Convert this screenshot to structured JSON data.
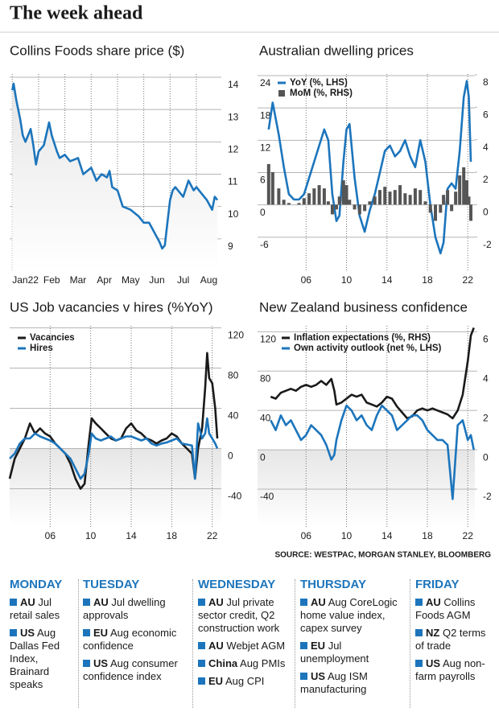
{
  "title": "The week ahead",
  "chart_data": [
    {
      "type": "line",
      "title": "Collins Foods share price ($)",
      "color": "#1c75bc",
      "x": [
        0,
        0.05,
        0.15,
        0.3,
        0.4,
        0.5,
        0.6,
        0.7,
        0.8,
        0.9,
        1.0,
        1.2,
        1.4,
        1.5,
        1.7,
        1.8,
        2.0,
        2.2,
        2.5,
        2.7,
        3.0,
        3.2,
        3.4,
        3.6,
        3.7,
        3.8,
        4.0,
        4.2,
        4.5,
        4.8,
        5.0,
        5.2,
        5.4,
        5.6,
        5.7,
        5.8,
        5.9,
        6.0,
        6.1,
        6.2,
        6.3,
        6.5,
        6.7,
        6.9,
        7.0,
        7.2,
        7.4,
        7.6,
        7.7,
        7.8
      ],
      "values": [
        13.6,
        13.8,
        13.3,
        12.7,
        12.2,
        12.0,
        12.2,
        12.4,
        11.9,
        11.3,
        11.7,
        11.9,
        12.6,
        12.2,
        11.7,
        11.5,
        11.6,
        11.4,
        11.5,
        11.0,
        11.2,
        10.8,
        11.0,
        10.9,
        11.1,
        10.6,
        10.5,
        10.0,
        9.9,
        9.7,
        9.5,
        9.5,
        9.2,
        8.9,
        8.7,
        8.8,
        9.5,
        10.2,
        10.5,
        10.6,
        10.5,
        10.3,
        10.8,
        10.5,
        10.6,
        10.4,
        10.2,
        9.9,
        10.3,
        10.2
      ],
      "xlim": [
        -0.1,
        7.95
      ],
      "xticks": [
        {
          "value": 0,
          "label": "Jan22"
        },
        {
          "value": 1,
          "label": "Feb"
        },
        {
          "value": 2,
          "label": "Mar"
        },
        {
          "value": 3,
          "label": "Apr"
        },
        {
          "value": 4,
          "label": "May"
        },
        {
          "value": 5,
          "label": "Jun"
        },
        {
          "value": 6,
          "label": "Jul"
        },
        {
          "value": 7,
          "label": "Aug"
        }
      ],
      "ylim": [
        8.0,
        14.1
      ],
      "yticks": [
        14,
        13,
        12,
        11,
        10,
        9
      ],
      "grid": true
    },
    {
      "type": "combo",
      "title": "Australian dwelling prices",
      "x": [
        2002.3,
        2002.7,
        2003.3,
        2003.8,
        2004.3,
        2004.8,
        2005.3,
        2005.8,
        2006.3,
        2006.8,
        2007.3,
        2007.8,
        2008.2,
        2008.6,
        2009.0,
        2009.3,
        2009.7,
        2010.0,
        2010.3,
        2010.8,
        2011.3,
        2011.8,
        2012.3,
        2012.8,
        2013.3,
        2013.8,
        2014.3,
        2014.8,
        2015.3,
        2015.8,
        2016.3,
        2016.8,
        2017.3,
        2017.8,
        2018.3,
        2018.8,
        2019.3,
        2019.6,
        2020.0,
        2020.4,
        2020.8,
        2021.2,
        2021.6,
        2021.9,
        2022.1,
        2022.3
      ],
      "series": [
        {
          "name": "YoY (%, LHS)",
          "type": "line",
          "color": "#1c75bc",
          "values": [
            14,
            19,
            13,
            7,
            2,
            1,
            1,
            2,
            5,
            8,
            11,
            14,
            12,
            2,
            -3,
            -2,
            8,
            14,
            15,
            5,
            -2,
            -5,
            -1,
            2,
            6,
            10,
            11,
            9,
            10,
            12,
            9,
            7,
            12,
            8,
            0,
            -6,
            -9,
            -7,
            3,
            4,
            3,
            10,
            20,
            23,
            20,
            8
          ]
        },
        {
          "name": "MoM (%, RHS)",
          "type": "bar",
          "axis": "y2",
          "color": "#555555",
          "values": [
            2.5,
            2.0,
            1.0,
            0.3,
            0.1,
            0.0,
            0.1,
            0.4,
            0.7,
            1.0,
            1.2,
            1.0,
            0.2,
            -0.6,
            -0.3,
            0.5,
            1.5,
            1.2,
            0.3,
            -0.3,
            -0.6,
            -0.4,
            0.2,
            0.5,
            0.9,
            1.1,
            0.8,
            0.9,
            1.2,
            0.7,
            0.6,
            1.0,
            0.9,
            0.2,
            -0.5,
            -1.0,
            -0.5,
            0.6,
            0.9,
            -0.4,
            0.8,
            1.8,
            2.3,
            1.5,
            0.5,
            -1.0
          ]
        }
      ],
      "xlim": [
        2001.2,
        2022.7
      ],
      "xticks": [
        {
          "value": 2006,
          "label": "06"
        },
        {
          "value": 2010,
          "label": "10"
        },
        {
          "value": 2014,
          "label": "14"
        },
        {
          "value": 2018,
          "label": "18"
        },
        {
          "value": 2022,
          "label": "22"
        }
      ],
      "ylim": [
        -12.3,
        24.3
      ],
      "yticks": [
        24,
        18,
        12,
        6,
        0,
        -6
      ],
      "y2lim": [
        -4.1,
        8.05
      ],
      "y2ticks": [
        8,
        6,
        4,
        2,
        0,
        -2
      ],
      "grid": true,
      "legend": "top-left"
    },
    {
      "type": "line",
      "title": "US Job vacancies v hires (%YoY)",
      "x": [
        2002,
        2002.5,
        2003,
        2003.5,
        2004,
        2004.5,
        2005,
        2005.5,
        2006,
        2006.5,
        2007,
        2007.5,
        2008,
        2008.5,
        2009,
        2009.4,
        2009.8,
        2010.1,
        2010.5,
        2011,
        2011.5,
        2012,
        2012.5,
        2013,
        2013.5,
        2014,
        2014.5,
        2015,
        2015.5,
        2016,
        2016.5,
        2017,
        2017.5,
        2018,
        2018.5,
        2019,
        2019.5,
        2020,
        2020.3,
        2020.6,
        2021,
        2021.3,
        2021.5,
        2021.7,
        2022,
        2022.3,
        2022.5
      ],
      "series": [
        {
          "name": "Vacancies",
          "color": "#1a1a1a",
          "values": [
            -30,
            -10,
            0,
            10,
            25,
            15,
            20,
            15,
            12,
            5,
            0,
            -5,
            -15,
            -30,
            -40,
            -35,
            5,
            30,
            25,
            20,
            15,
            10,
            8,
            10,
            20,
            25,
            18,
            15,
            10,
            8,
            5,
            8,
            10,
            15,
            12,
            5,
            0,
            -5,
            -30,
            0,
            20,
            60,
            95,
            70,
            65,
            40,
            10
          ]
        },
        {
          "name": "Hires",
          "color": "#1c75bc",
          "values": [
            -10,
            -5,
            5,
            10,
            10,
            15,
            12,
            10,
            8,
            5,
            0,
            -5,
            -10,
            -20,
            -30,
            -25,
            -5,
            15,
            10,
            8,
            10,
            12,
            8,
            10,
            12,
            12,
            10,
            8,
            10,
            5,
            3,
            5,
            6,
            8,
            10,
            5,
            4,
            3,
            -30,
            25,
            10,
            15,
            30,
            15,
            10,
            5,
            0
          ]
        }
      ],
      "xlim": [
        2002,
        2022.9
      ],
      "xticks": [
        {
          "value": 2006,
          "label": "06"
        },
        {
          "value": 2010,
          "label": "10"
        },
        {
          "value": 2014,
          "label": "14"
        },
        {
          "value": 2018,
          "label": "18"
        },
        {
          "value": 2022,
          "label": "22"
        }
      ],
      "ylim": [
        -78,
        122
      ],
      "yticks": [
        120,
        80,
        40,
        0,
        -40
      ],
      "grid": true,
      "legend": "top-left"
    },
    {
      "type": "line",
      "title": "New Zealand business confidence",
      "x": [
        2002.5,
        2003,
        2003.5,
        2004,
        2004.5,
        2005,
        2005.5,
        2006,
        2006.5,
        2007,
        2007.5,
        2008,
        2008.5,
        2008.8,
        2009,
        2009.5,
        2010,
        2010.5,
        2011,
        2011.5,
        2012,
        2012.5,
        2013,
        2013.5,
        2014,
        2014.5,
        2015,
        2015.5,
        2016,
        2016.5,
        2017,
        2017.5,
        2018,
        2018.5,
        2019,
        2019.5,
        2020,
        2020.5,
        2021,
        2021.5,
        2022,
        2022.3,
        2022.6
      ],
      "series": [
        {
          "name": "Inflation expectations (%, RHS)",
          "axis": "y2",
          "color": "#1a1a1a",
          "values": [
            2.7,
            2.6,
            2.9,
            3.0,
            3.1,
            3.0,
            3.2,
            3.3,
            3.2,
            3.3,
            3.5,
            3.3,
            3.6,
            3.0,
            2.3,
            2.4,
            2.6,
            2.8,
            2.7,
            2.8,
            2.4,
            2.3,
            2.2,
            2.4,
            2.7,
            2.6,
            2.2,
            1.9,
            1.6,
            1.7,
            2.0,
            2.1,
            2.0,
            2.1,
            2.0,
            1.9,
            1.8,
            1.6,
            2.0,
            2.8,
            4.5,
            5.8,
            6.2
          ]
        },
        {
          "name": "Own activity outlook (net %, LHS)",
          "color": "#1c75bc",
          "values": [
            30,
            20,
            35,
            25,
            30,
            20,
            10,
            15,
            25,
            20,
            15,
            5,
            -10,
            -5,
            10,
            30,
            45,
            40,
            30,
            35,
            25,
            20,
            35,
            45,
            40,
            35,
            20,
            25,
            30,
            35,
            35,
            30,
            20,
            15,
            10,
            10,
            5,
            -50,
            25,
            30,
            10,
            15,
            0
          ]
        }
      ],
      "xlim": [
        2001.2,
        2022.7
      ],
      "xticks": [
        {
          "value": 2006,
          "label": "06"
        },
        {
          "value": 2010,
          "label": "10"
        },
        {
          "value": 2014,
          "label": "14"
        },
        {
          "value": 2018,
          "label": "18"
        },
        {
          "value": 2022,
          "label": "22"
        }
      ],
      "ylim": [
        -78.4,
        126
      ],
      "yticks": [
        120,
        80,
        40,
        0,
        -40
      ],
      "y2lim": [
        -3.92,
        6.3
      ],
      "y2ticks": [
        6,
        4,
        2,
        0,
        -2
      ],
      "grid": true,
      "legend": "top-left"
    }
  ],
  "source": "SOURCE: WESTPAC, MORGAN STANLEY, BLOOMBERG",
  "calendar": [
    {
      "day": "MONDAY",
      "items": [
        {
          "region": "AU",
          "text": "Jul retail sales"
        },
        {
          "region": "US",
          "text": "Aug Dallas Fed Index, Brainard speaks"
        }
      ]
    },
    {
      "day": "TUESDAY",
      "items": [
        {
          "region": "AU",
          "text": "Jul dwelling approvals"
        },
        {
          "region": "EU",
          "text": "Aug economic confidence"
        },
        {
          "region": "US",
          "text": "Aug consumer confidence index"
        }
      ]
    },
    {
      "day": "WEDNESDAY",
      "items": [
        {
          "region": "AU",
          "text": "Jul private sector credit, Q2 construction work"
        },
        {
          "region": "AU",
          "text": "Webjet AGM"
        },
        {
          "region": "China",
          "text": "Aug PMIs"
        },
        {
          "region": "EU",
          "text": "Aug CPI"
        }
      ]
    },
    {
      "day": "THURSDAY",
      "items": [
        {
          "region": "AU",
          "text": "Aug CoreLogic home value index, capex survey"
        },
        {
          "region": "EU",
          "text": "Jul unemployment"
        },
        {
          "region": "US",
          "text": "Aug ISM manufacturing"
        }
      ]
    },
    {
      "day": "FRIDAY",
      "items": [
        {
          "region": "AU",
          "text": "Collins Foods AGM"
        },
        {
          "region": "NZ",
          "text": "Q2 terms of trade"
        },
        {
          "region": "US",
          "text": "Aug non-farm payrolls"
        }
      ]
    }
  ]
}
